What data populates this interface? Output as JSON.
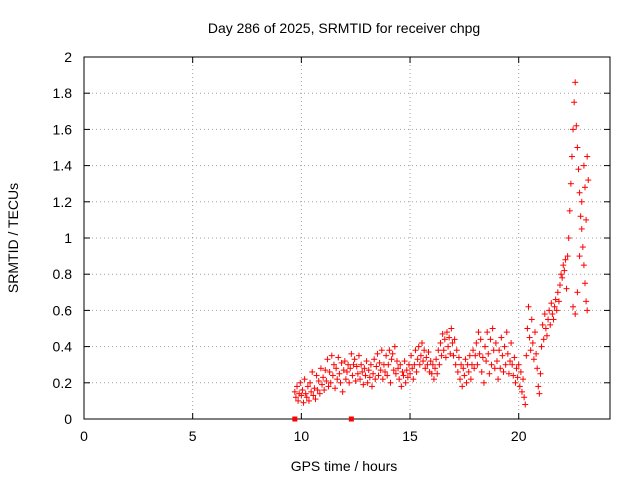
{
  "chart_data": {
    "type": "scatter",
    "title": "Day 286 of 2025, SRMTID for receiver chpg",
    "xlabel": "GPS time / hours",
    "ylabel": "SRMTID / TECUs",
    "xlim": [
      0,
      24.2
    ],
    "ylim": [
      0,
      2
    ],
    "x_ticks": [
      0,
      5,
      10,
      15,
      20
    ],
    "x_tick_labels": [
      "0",
      "5",
      "10",
      "15",
      "20"
    ],
    "y_ticks": [
      0,
      0.2,
      0.4,
      0.6,
      0.8,
      1,
      1.2,
      1.4,
      1.6,
      1.8,
      2
    ],
    "y_tick_labels": [
      "0",
      "0.2",
      "0.4",
      "0.6",
      "0.8",
      "1",
      "1.2",
      "1.4",
      "1.6",
      "1.8",
      "2"
    ],
    "grid": true,
    "marker": "+",
    "color": "#ff0000",
    "square_markers": [
      {
        "x": 9.7,
        "y": 0.0
      },
      {
        "x": 12.3,
        "y": 0.0
      }
    ],
    "series": [
      {
        "name": "SRMTID",
        "points": [
          [
            9.7,
            0.15
          ],
          [
            9.75,
            0.12
          ],
          [
            9.8,
            0.18
          ],
          [
            9.85,
            0.1
          ],
          [
            9.9,
            0.14
          ],
          [
            9.95,
            0.2
          ],
          [
            10.0,
            0.13
          ],
          [
            10.05,
            0.16
          ],
          [
            10.1,
            0.09
          ],
          [
            10.15,
            0.22
          ],
          [
            10.2,
            0.14
          ],
          [
            10.25,
            0.12
          ],
          [
            10.3,
            0.18
          ],
          [
            10.35,
            0.1
          ],
          [
            10.4,
            0.2
          ],
          [
            10.45,
            0.15
          ],
          [
            10.5,
            0.26
          ],
          [
            10.55,
            0.13
          ],
          [
            10.6,
            0.17
          ],
          [
            10.65,
            0.11
          ],
          [
            10.7,
            0.24
          ],
          [
            10.75,
            0.16
          ],
          [
            10.8,
            0.21
          ],
          [
            10.85,
            0.14
          ],
          [
            10.9,
            0.28
          ],
          [
            10.95,
            0.19
          ],
          [
            11.0,
            0.23
          ],
          [
            11.05,
            0.16
          ],
          [
            11.1,
            0.27
          ],
          [
            11.15,
            0.21
          ],
          [
            11.2,
            0.33
          ],
          [
            11.25,
            0.18
          ],
          [
            11.3,
            0.26
          ],
          [
            11.35,
            0.2
          ],
          [
            11.4,
            0.35
          ],
          [
            11.45,
            0.24
          ],
          [
            11.5,
            0.3
          ],
          [
            11.55,
            0.17
          ],
          [
            11.6,
            0.28
          ],
          [
            11.65,
            0.22
          ],
          [
            11.7,
            0.34
          ],
          [
            11.75,
            0.25
          ],
          [
            11.8,
            0.2
          ],
          [
            11.85,
            0.31
          ],
          [
            11.9,
            0.15
          ],
          [
            11.95,
            0.27
          ],
          [
            12.0,
            0.32
          ],
          [
            12.05,
            0.22
          ],
          [
            12.1,
            0.26
          ],
          [
            12.15,
            0.3
          ],
          [
            12.2,
            0.2
          ],
          [
            12.25,
            0.28
          ],
          [
            12.3,
            0.36
          ],
          [
            12.35,
            0.24
          ],
          [
            12.4,
            0.3
          ],
          [
            12.45,
            0.33
          ],
          [
            12.5,
            0.21
          ],
          [
            12.55,
            0.29
          ],
          [
            12.6,
            0.25
          ],
          [
            12.65,
            0.35
          ],
          [
            12.7,
            0.22
          ],
          [
            12.75,
            0.3
          ],
          [
            12.8,
            0.26
          ],
          [
            12.85,
            0.19
          ],
          [
            12.9,
            0.28
          ],
          [
            12.95,
            0.24
          ],
          [
            13.0,
            0.32
          ],
          [
            13.05,
            0.2
          ],
          [
            13.1,
            0.27
          ],
          [
            13.15,
            0.23
          ],
          [
            13.2,
            0.3
          ],
          [
            13.25,
            0.18
          ],
          [
            13.3,
            0.25
          ],
          [
            13.35,
            0.33
          ],
          [
            13.4,
            0.22
          ],
          [
            13.45,
            0.29
          ],
          [
            13.5,
            0.36
          ],
          [
            13.55,
            0.24
          ],
          [
            13.6,
            0.31
          ],
          [
            13.65,
            0.27
          ],
          [
            13.7,
            0.38
          ],
          [
            13.75,
            0.22
          ],
          [
            13.8,
            0.3
          ],
          [
            13.85,
            0.26
          ],
          [
            13.9,
            0.35
          ],
          [
            13.95,
            0.24
          ],
          [
            14.0,
            0.3
          ],
          [
            14.05,
            0.38
          ],
          [
            14.1,
            0.2
          ],
          [
            14.15,
            0.33
          ],
          [
            14.2,
            0.36
          ],
          [
            14.25,
            0.27
          ],
          [
            14.3,
            0.4
          ],
          [
            14.35,
            0.25
          ],
          [
            14.4,
            0.32
          ],
          [
            14.45,
            0.28
          ],
          [
            14.5,
            0.22
          ],
          [
            14.55,
            0.3
          ],
          [
            14.6,
            0.18
          ],
          [
            14.65,
            0.26
          ],
          [
            14.7,
            0.24
          ],
          [
            14.75,
            0.32
          ],
          [
            14.8,
            0.2
          ],
          [
            14.85,
            0.27
          ],
          [
            14.9,
            0.23
          ],
          [
            14.95,
            0.3
          ],
          [
            15.0,
            0.25
          ],
          [
            15.05,
            0.35
          ],
          [
            15.1,
            0.28
          ],
          [
            15.15,
            0.22
          ],
          [
            15.2,
            0.3
          ],
          [
            15.25,
            0.38
          ],
          [
            15.3,
            0.26
          ],
          [
            15.35,
            0.33
          ],
          [
            15.4,
            0.4
          ],
          [
            15.45,
            0.3
          ],
          [
            15.5,
            0.35
          ],
          [
            15.55,
            0.42
          ],
          [
            15.6,
            0.32
          ],
          [
            15.65,
            0.38
          ],
          [
            15.7,
            0.28
          ],
          [
            15.75,
            0.34
          ],
          [
            15.8,
            0.3
          ],
          [
            15.85,
            0.37
          ],
          [
            15.9,
            0.26
          ],
          [
            15.95,
            0.32
          ],
          [
            16.0,
            0.25
          ],
          [
            16.05,
            0.3
          ],
          [
            16.1,
            0.22
          ],
          [
            16.15,
            0.28
          ],
          [
            16.2,
            0.33
          ],
          [
            16.25,
            0.25
          ],
          [
            16.3,
            0.38
          ],
          [
            16.35,
            0.3
          ],
          [
            16.4,
            0.42
          ],
          [
            16.45,
            0.35
          ],
          [
            16.5,
            0.47
          ],
          [
            16.55,
            0.38
          ],
          [
            16.6,
            0.44
          ],
          [
            16.65,
            0.34
          ],
          [
            16.7,
            0.48
          ],
          [
            16.75,
            0.4
          ],
          [
            16.8,
            0.45
          ],
          [
            16.85,
            0.36
          ],
          [
            16.9,
            0.5
          ],
          [
            16.95,
            0.42
          ],
          [
            17.0,
            0.35
          ],
          [
            17.05,
            0.44
          ],
          [
            17.1,
            0.3
          ],
          [
            17.15,
            0.38
          ],
          [
            17.2,
            0.26
          ],
          [
            17.25,
            0.34
          ],
          [
            17.3,
            0.22
          ],
          [
            17.35,
            0.3
          ],
          [
            17.4,
            0.18
          ],
          [
            17.45,
            0.28
          ],
          [
            17.5,
            0.24
          ],
          [
            17.55,
            0.33
          ],
          [
            17.6,
            0.2
          ],
          [
            17.65,
            0.3
          ],
          [
            17.7,
            0.26
          ],
          [
            17.75,
            0.35
          ],
          [
            17.8,
            0.22
          ],
          [
            17.85,
            0.3
          ],
          [
            17.9,
            0.38
          ],
          [
            17.95,
            0.28
          ],
          [
            18.0,
            0.35
          ],
          [
            18.05,
            0.42
          ],
          [
            18.1,
            0.3
          ],
          [
            18.15,
            0.48
          ],
          [
            18.2,
            0.36
          ],
          [
            18.25,
            0.44
          ],
          [
            18.3,
            0.26
          ],
          [
            18.35,
            0.34
          ],
          [
            18.4,
            0.2
          ],
          [
            18.45,
            0.4
          ],
          [
            18.5,
            0.32
          ],
          [
            18.55,
            0.48
          ],
          [
            18.6,
            0.36
          ],
          [
            18.65,
            0.25
          ],
          [
            18.7,
            0.44
          ],
          [
            18.75,
            0.3
          ],
          [
            18.8,
            0.5
          ],
          [
            18.85,
            0.38
          ],
          [
            18.9,
            0.28
          ],
          [
            18.95,
            0.42
          ],
          [
            19.0,
            0.32
          ],
          [
            19.05,
            0.22
          ],
          [
            19.1,
            0.38
          ],
          [
            19.15,
            0.28
          ],
          [
            19.2,
            0.45
          ],
          [
            19.25,
            0.35
          ],
          [
            19.3,
            0.26
          ],
          [
            19.35,
            0.4
          ],
          [
            19.4,
            0.3
          ],
          [
            19.45,
            0.48
          ],
          [
            19.5,
            0.36
          ],
          [
            19.55,
            0.25
          ],
          [
            19.6,
            0.32
          ],
          [
            19.65,
            0.42
          ],
          [
            19.7,
            0.3
          ],
          [
            19.75,
            0.24
          ],
          [
            19.8,
            0.34
          ],
          [
            19.85,
            0.2
          ],
          [
            19.9,
            0.28
          ],
          [
            19.95,
            0.23
          ],
          [
            20.0,
            0.3
          ],
          [
            20.05,
            0.18
          ],
          [
            20.1,
            0.26
          ],
          [
            20.15,
            0.15
          ],
          [
            20.2,
            0.22
          ],
          [
            20.25,
            0.12
          ],
          [
            20.3,
            0.08
          ],
          [
            20.35,
            0.35
          ],
          [
            20.4,
            0.5
          ],
          [
            20.45,
            0.62
          ],
          [
            20.5,
            0.45
          ],
          [
            20.55,
            0.38
          ],
          [
            20.6,
            0.55
          ],
          [
            20.65,
            0.42
          ],
          [
            20.7,
            0.33
          ],
          [
            20.75,
            0.48
          ],
          [
            20.8,
            0.36
          ],
          [
            20.85,
            0.28
          ],
          [
            20.9,
            0.18
          ],
          [
            20.95,
            0.14
          ],
          [
            21.0,
            0.25
          ],
          [
            21.05,
            0.4
          ],
          [
            21.1,
            0.52
          ],
          [
            21.15,
            0.44
          ],
          [
            21.2,
            0.58
          ],
          [
            21.25,
            0.5
          ],
          [
            21.3,
            0.46
          ],
          [
            21.35,
            0.55
          ],
          [
            21.4,
            0.6
          ],
          [
            21.45,
            0.52
          ],
          [
            21.5,
            0.64
          ],
          [
            21.55,
            0.58
          ],
          [
            21.6,
            0.55
          ],
          [
            21.65,
            0.62
          ],
          [
            21.7,
            0.66
          ],
          [
            21.75,
            0.6
          ],
          [
            21.8,
            0.7
          ],
          [
            21.85,
            0.65
          ],
          [
            21.9,
            0.74
          ],
          [
            21.95,
            0.8
          ],
          [
            22.0,
            0.78
          ],
          [
            22.05,
            0.85
          ],
          [
            22.1,
            0.82
          ],
          [
            22.15,
            0.88
          ],
          [
            22.2,
            0.72
          ],
          [
            22.25,
            0.9
          ],
          [
            22.3,
            1.0
          ],
          [
            22.35,
            1.15
          ],
          [
            22.4,
            1.3
          ],
          [
            22.45,
            1.45
          ],
          [
            22.5,
            1.6
          ],
          [
            22.55,
            1.75
          ],
          [
            22.6,
            1.86
          ],
          [
            22.65,
            1.62
          ],
          [
            22.7,
            1.5
          ],
          [
            22.75,
            1.38
          ],
          [
            22.8,
            1.25
          ],
          [
            22.85,
            1.12
          ],
          [
            22.9,
            1.05
          ],
          [
            22.95,
            0.95
          ],
          [
            23.0,
            0.85
          ],
          [
            23.05,
            0.75
          ],
          [
            23.1,
            0.65
          ],
          [
            23.15,
            0.6
          ],
          [
            22.5,
            0.62
          ],
          [
            22.6,
            0.58
          ],
          [
            22.7,
            0.7
          ],
          [
            22.8,
            0.9
          ],
          [
            22.9,
            1.2
          ],
          [
            23.0,
            1.4
          ],
          [
            23.05,
            1.28
          ],
          [
            23.1,
            1.1
          ],
          [
            23.15,
            1.45
          ],
          [
            23.2,
            1.32
          ]
        ]
      }
    ]
  }
}
